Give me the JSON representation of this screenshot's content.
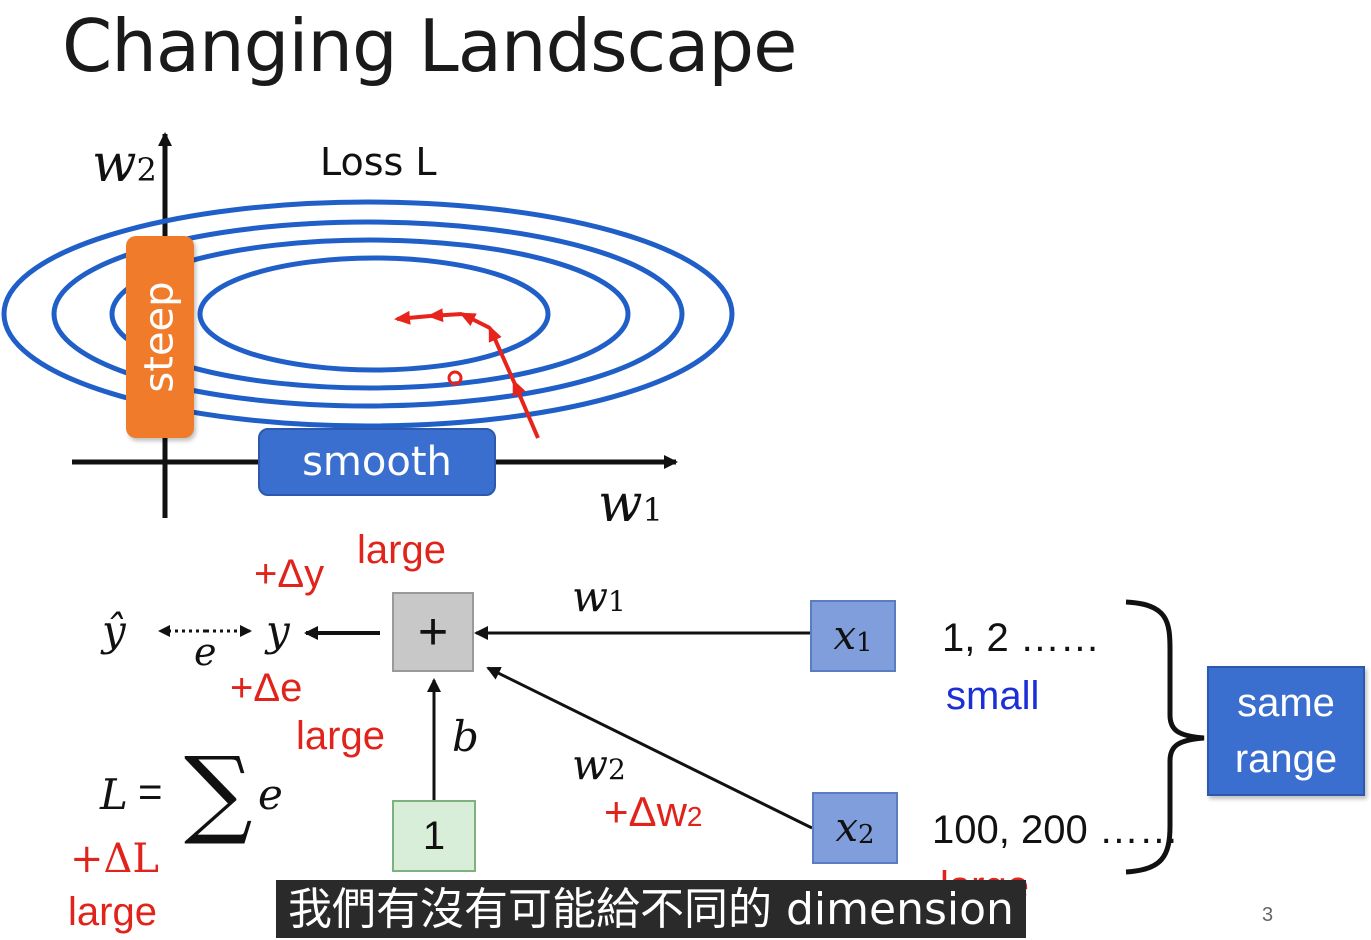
{
  "slide": {
    "title": "Changing Landscape",
    "page_number": "3"
  },
  "landscape": {
    "loss_label": "Loss L",
    "w2_axis": "w",
    "w2_sub": "2",
    "w1_axis": "w",
    "w1_sub": "1",
    "steep_label": "steep",
    "smooth_label": "smooth",
    "colors": {
      "contour": "#1f5fc7",
      "steep": "#f07b2a",
      "smooth": "#3a6fd0",
      "path": "#e8231b"
    }
  },
  "network": {
    "yhat": "ŷ",
    "e_label": "e",
    "y_label": "y",
    "plus_dy": "+Δy",
    "large_top": "large",
    "plus_de": "+Δe",
    "large_mid": "large",
    "sum_node": "+",
    "w1_label": "w",
    "w1_sub": "1",
    "w2_label": "w",
    "w2_sub": "2",
    "plus_dw2": "+Δw",
    "plus_dw2_sub": "2",
    "b_label": "b",
    "one_node": "1",
    "x1_label": "x",
    "x1_sub": "1",
    "x2_label": "x",
    "x2_sub": "2",
    "x1_values": "1, 2 ……",
    "x1_size": "small",
    "x2_values": "100, 200 ……",
    "x2_size": "large",
    "same_range_line1": "same",
    "same_range_line2": "range",
    "loss_eq_L": "L",
    "loss_eq_eq": "=",
    "loss_eq_sum": "∑",
    "loss_eq_e": "e",
    "plus_dL": "+ΔL",
    "large_bottom": "large"
  },
  "subtitle": "我們有沒有可能給不同的 dimension"
}
